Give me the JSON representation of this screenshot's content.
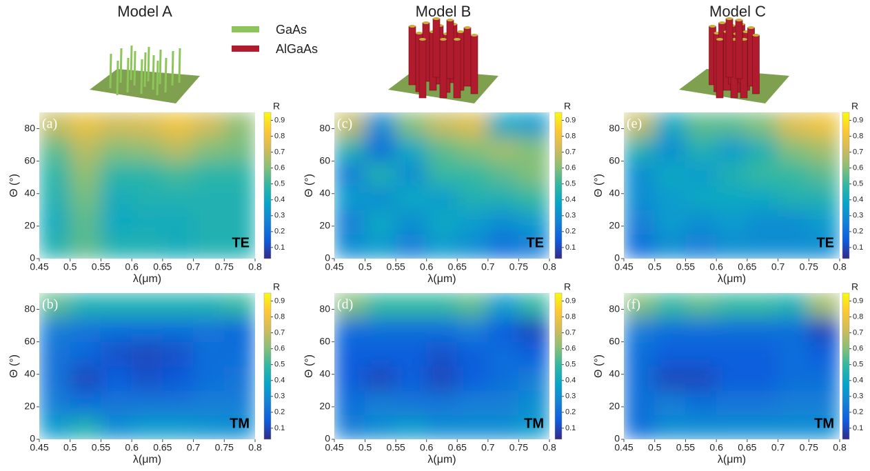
{
  "header": {
    "titles": [
      "Model A",
      "Model B",
      "Model C"
    ],
    "legend": [
      {
        "name": "GaAs",
        "color": "#8dc55a"
      },
      {
        "name": "AlGaAs",
        "color": "#b01c2e"
      }
    ]
  },
  "chart_data": [
    {
      "type": "heatmap",
      "title": "(a)",
      "mode": "TE",
      "x_label": "λ(μm)",
      "y_label": "Θ (°)",
      "colorbar_label": "R",
      "x": [
        0.475,
        0.525,
        0.575,
        0.625,
        0.675,
        0.725,
        0.775
      ],
      "y": [
        7.5,
        22.5,
        37.5,
        52.5,
        67.5,
        82.5
      ],
      "z": [
        [
          0.45,
          0.55,
          0.45,
          0.45,
          0.42,
          0.45,
          0.45
        ],
        [
          0.42,
          0.55,
          0.4,
          0.42,
          0.42,
          0.45,
          0.45
        ],
        [
          0.45,
          0.58,
          0.42,
          0.45,
          0.45,
          0.45,
          0.45
        ],
        [
          0.48,
          0.62,
          0.48,
          0.48,
          0.52,
          0.48,
          0.48
        ],
        [
          0.55,
          0.68,
          0.6,
          0.62,
          0.68,
          0.6,
          0.58
        ],
        [
          0.7,
          0.78,
          0.72,
          0.74,
          0.8,
          0.72,
          0.62
        ]
      ],
      "xlim": [
        0.45,
        0.8
      ],
      "xticks": [
        0.45,
        0.5,
        0.55,
        0.6,
        0.65,
        0.7,
        0.75,
        0.8
      ],
      "ylim": [
        0,
        90
      ],
      "yticks": [
        0,
        20,
        40,
        60,
        80
      ],
      "zlim": [
        0.03,
        0.95
      ],
      "zticks": [
        0.1,
        0.2,
        0.3,
        0.4,
        0.5,
        0.6,
        0.7,
        0.8,
        0.9
      ],
      "colormap": [
        "#352a87",
        "#0f5cdd",
        "#1481d6",
        "#06a4ca",
        "#2eb7a4",
        "#87bf77",
        "#d1bb59",
        "#fec832",
        "#f9fb0e"
      ]
    },
    {
      "type": "heatmap",
      "title": "(b)",
      "mode": "TM",
      "x_label": "λ(μm)",
      "y_label": "Θ (°)",
      "colorbar_label": "R",
      "x": [
        0.475,
        0.525,
        0.575,
        0.625,
        0.675,
        0.725,
        0.775
      ],
      "y": [
        7.5,
        22.5,
        37.5,
        52.5,
        67.5,
        82.5
      ],
      "z": [
        [
          0.35,
          0.45,
          0.3,
          0.35,
          0.35,
          0.32,
          0.3
        ],
        [
          0.25,
          0.2,
          0.22,
          0.22,
          0.22,
          0.25,
          0.25
        ],
        [
          0.22,
          0.1,
          0.15,
          0.12,
          0.14,
          0.2,
          0.22
        ],
        [
          0.22,
          0.18,
          0.12,
          0.1,
          0.12,
          0.2,
          0.2
        ],
        [
          0.25,
          0.22,
          0.2,
          0.2,
          0.2,
          0.22,
          0.18
        ],
        [
          0.55,
          0.45,
          0.45,
          0.45,
          0.45,
          0.45,
          0.5
        ]
      ],
      "xlim": [
        0.45,
        0.8
      ],
      "xticks": [
        0.45,
        0.5,
        0.55,
        0.6,
        0.65,
        0.7,
        0.75,
        0.8
      ],
      "ylim": [
        0,
        90
      ],
      "yticks": [
        0,
        20,
        40,
        60,
        80
      ],
      "zlim": [
        0.03,
        0.95
      ],
      "zticks": [
        0.1,
        0.2,
        0.3,
        0.4,
        0.5,
        0.6,
        0.7,
        0.8,
        0.9
      ],
      "colormap": [
        "#352a87",
        "#0f5cdd",
        "#1481d6",
        "#06a4ca",
        "#2eb7a4",
        "#87bf77",
        "#d1bb59",
        "#fec832",
        "#f9fb0e"
      ]
    },
    {
      "type": "heatmap",
      "title": "(c)",
      "mode": "TE",
      "x_label": "λ(μm)",
      "y_label": "Θ (°)",
      "colorbar_label": "R",
      "x": [
        0.475,
        0.525,
        0.575,
        0.625,
        0.675,
        0.725,
        0.775
      ],
      "y": [
        7.5,
        22.5,
        37.5,
        52.5,
        67.5,
        82.5
      ],
      "z": [
        [
          0.3,
          0.35,
          0.25,
          0.35,
          0.3,
          0.2,
          0.25
        ],
        [
          0.25,
          0.4,
          0.3,
          0.4,
          0.35,
          0.3,
          0.35
        ],
        [
          0.35,
          0.3,
          0.4,
          0.35,
          0.45,
          0.45,
          0.5
        ],
        [
          0.25,
          0.45,
          0.3,
          0.5,
          0.5,
          0.55,
          0.6
        ],
        [
          0.45,
          0.2,
          0.4,
          0.55,
          0.6,
          0.65,
          0.6
        ],
        [
          0.7,
          0.3,
          0.6,
          0.7,
          0.75,
          0.4,
          0.35
        ]
      ],
      "xlim": [
        0.45,
        0.8
      ],
      "xticks": [
        0.45,
        0.5,
        0.55,
        0.6,
        0.65,
        0.7,
        0.75,
        0.8
      ],
      "ylim": [
        0,
        90
      ],
      "yticks": [
        0,
        20,
        40,
        60,
        80
      ],
      "zlim": [
        0.03,
        0.95
      ],
      "zticks": [
        0.1,
        0.2,
        0.3,
        0.4,
        0.5,
        0.6,
        0.7,
        0.8,
        0.9
      ],
      "colormap": [
        "#352a87",
        "#0f5cdd",
        "#1481d6",
        "#06a4ca",
        "#2eb7a4",
        "#87bf77",
        "#d1bb59",
        "#fec832",
        "#f9fb0e"
      ]
    },
    {
      "type": "heatmap",
      "title": "(d)",
      "mode": "TM",
      "x_label": "λ(μm)",
      "y_label": "Θ (°)",
      "colorbar_label": "R",
      "x": [
        0.475,
        0.525,
        0.575,
        0.625,
        0.675,
        0.725,
        0.775
      ],
      "y": [
        7.5,
        22.5,
        37.5,
        52.5,
        67.5,
        82.5
      ],
      "z": [
        [
          0.25,
          0.3,
          0.35,
          0.3,
          0.3,
          0.3,
          0.35
        ],
        [
          0.2,
          0.25,
          0.22,
          0.22,
          0.25,
          0.25,
          0.3
        ],
        [
          0.15,
          0.1,
          0.15,
          0.1,
          0.15,
          0.2,
          0.25
        ],
        [
          0.15,
          0.15,
          0.15,
          0.12,
          0.15,
          0.2,
          0.15
        ],
        [
          0.2,
          0.2,
          0.2,
          0.2,
          0.25,
          0.15,
          0.1
        ],
        [
          0.6,
          0.5,
          0.5,
          0.5,
          0.55,
          0.35,
          0.5
        ]
      ],
      "xlim": [
        0.45,
        0.8
      ],
      "xticks": [
        0.45,
        0.5,
        0.55,
        0.6,
        0.65,
        0.7,
        0.75,
        0.8
      ],
      "ylim": [
        0,
        90
      ],
      "yticks": [
        0,
        20,
        40,
        60,
        80
      ],
      "zlim": [
        0.03,
        0.95
      ],
      "zticks": [
        0.1,
        0.2,
        0.3,
        0.4,
        0.5,
        0.6,
        0.7,
        0.8,
        0.9
      ],
      "colormap": [
        "#352a87",
        "#0f5cdd",
        "#1481d6",
        "#06a4ca",
        "#2eb7a4",
        "#87bf77",
        "#d1bb59",
        "#fec832",
        "#f9fb0e"
      ]
    },
    {
      "type": "heatmap",
      "title": "(e)",
      "mode": "TE",
      "x_label": "λ(μm)",
      "y_label": "Θ (°)",
      "colorbar_label": "R",
      "x": [
        0.475,
        0.525,
        0.575,
        0.625,
        0.675,
        0.725,
        0.775
      ],
      "y": [
        7.5,
        22.5,
        37.5,
        52.5,
        67.5,
        82.5
      ],
      "z": [
        [
          0.2,
          0.3,
          0.25,
          0.3,
          0.3,
          0.3,
          0.3
        ],
        [
          0.25,
          0.35,
          0.3,
          0.35,
          0.3,
          0.3,
          0.35
        ],
        [
          0.3,
          0.35,
          0.4,
          0.4,
          0.4,
          0.45,
          0.45
        ],
        [
          0.3,
          0.4,
          0.35,
          0.45,
          0.5,
          0.5,
          0.55
        ],
        [
          0.45,
          0.3,
          0.45,
          0.35,
          0.45,
          0.6,
          0.65
        ],
        [
          0.7,
          0.4,
          0.55,
          0.55,
          0.6,
          0.75,
          0.8
        ]
      ],
      "xlim": [
        0.45,
        0.8
      ],
      "xticks": [
        0.45,
        0.5,
        0.55,
        0.6,
        0.65,
        0.7,
        0.75,
        0.8
      ],
      "ylim": [
        0,
        90
      ],
      "yticks": [
        0,
        20,
        40,
        60,
        80
      ],
      "zlim": [
        0.03,
        0.95
      ],
      "zticks": [
        0.1,
        0.2,
        0.3,
        0.4,
        0.5,
        0.6,
        0.7,
        0.8,
        0.9
      ],
      "colormap": [
        "#352a87",
        "#0f5cdd",
        "#1481d6",
        "#06a4ca",
        "#2eb7a4",
        "#87bf77",
        "#d1bb59",
        "#fec832",
        "#f9fb0e"
      ]
    },
    {
      "type": "heatmap",
      "title": "(f)",
      "mode": "TM",
      "x_label": "λ(μm)",
      "y_label": "Θ (°)",
      "colorbar_label": "R",
      "x": [
        0.475,
        0.525,
        0.575,
        0.625,
        0.675,
        0.725,
        0.775
      ],
      "y": [
        7.5,
        22.5,
        37.5,
        52.5,
        67.5,
        82.5
      ],
      "z": [
        [
          0.2,
          0.3,
          0.3,
          0.3,
          0.3,
          0.3,
          0.3
        ],
        [
          0.2,
          0.25,
          0.2,
          0.22,
          0.22,
          0.25,
          0.25
        ],
        [
          0.2,
          0.1,
          0.1,
          0.15,
          0.15,
          0.2,
          0.2
        ],
        [
          0.2,
          0.15,
          0.15,
          0.15,
          0.15,
          0.2,
          0.15
        ],
        [
          0.25,
          0.2,
          0.2,
          0.2,
          0.2,
          0.2,
          0.1
        ],
        [
          0.6,
          0.5,
          0.55,
          0.5,
          0.5,
          0.45,
          0.65
        ]
      ],
      "xlim": [
        0.45,
        0.8
      ],
      "xticks": [
        0.45,
        0.5,
        0.55,
        0.6,
        0.65,
        0.7,
        0.75,
        0.8
      ],
      "ylim": [
        0,
        90
      ],
      "yticks": [
        0,
        20,
        40,
        60,
        80
      ],
      "zlim": [
        0.03,
        0.95
      ],
      "zticks": [
        0.1,
        0.2,
        0.3,
        0.4,
        0.5,
        0.6,
        0.7,
        0.8,
        0.9
      ],
      "colormap": [
        "#352a87",
        "#0f5cdd",
        "#1481d6",
        "#06a4ca",
        "#2eb7a4",
        "#87bf77",
        "#d1bb59",
        "#fec832",
        "#f9fb0e"
      ]
    }
  ]
}
